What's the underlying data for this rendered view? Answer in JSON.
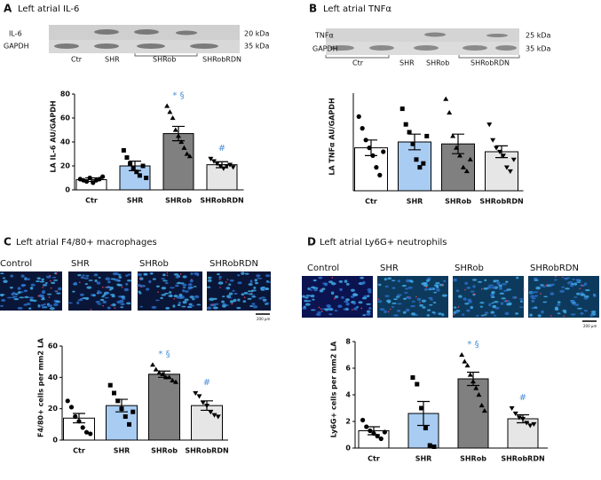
{
  "panels": [
    {
      "letter": "A",
      "title": "Left atrial IL-6",
      "blot": {
        "rows": [
          "IL-6",
          "GAPDH"
        ],
        "sizes": [
          "20 kDa",
          "35 kDa"
        ],
        "lanes": [
          "Ctr",
          "SHR",
          "SHRob",
          "SHRobRDN"
        ]
      }
    },
    {
      "letter": "B",
      "title": "Left atrial TNFα",
      "blot": {
        "rows": [
          "TNFα",
          "GAPDH"
        ],
        "sizes": [
          "25 kDa",
          "35 kDa"
        ],
        "lanes": [
          "Ctr",
          "SHR",
          "SHRob",
          "SHRobRDN"
        ]
      }
    },
    {
      "letter": "C",
      "title": "Left atrial F4/80+ macrophages",
      "images": [
        "Control",
        "SHR",
        "SHRob",
        "SHRobRDN"
      ],
      "scale": "200 μm"
    },
    {
      "letter": "D",
      "title": "Left atrial Ly6G+ neutrophils",
      "images": [
        "Control",
        "SHR",
        "SHRob",
        "SHRobRDN"
      ],
      "scale": "200 μm"
    }
  ],
  "chart_data": [
    {
      "type": "bar",
      "ylabel": "LA IL-6 AU/GAPDH",
      "categories": [
        "Ctr",
        "SHR",
        "SHRob",
        "SHRobRDN"
      ],
      "values": [
        8.5,
        20,
        47,
        21
      ],
      "errors": [
        1.5,
        4,
        6,
        2.5
      ],
      "points": [
        [
          9,
          8,
          7,
          10,
          6,
          8,
          9,
          11
        ],
        [
          33,
          27,
          22,
          18,
          15,
          12,
          20,
          10
        ],
        [
          70,
          65,
          60,
          50,
          45,
          40,
          35,
          30,
          28
        ],
        [
          26,
          24,
          22,
          20,
          18,
          20,
          21,
          19
        ]
      ],
      "colors": [
        "#ffffff",
        "#a9ccf2",
        "#808080",
        "#e6e6e6"
      ],
      "markers": [
        "circle",
        "square",
        "triangle",
        "triangle-down"
      ],
      "annotations": [
        null,
        null,
        "* §",
        "#"
      ],
      "annotation_color": "#4a90d9",
      "ylim": [
        0,
        80
      ],
      "yticks": [
        0,
        20,
        40,
        60,
        80
      ]
    },
    {
      "type": "bar",
      "ylabel": "LA TNFα AU/GAPDH",
      "categories": [
        "Ctr",
        "SHR",
        "SHRob",
        "SHRobRDN"
      ],
      "values": [
        1.1,
        1.25,
        1.2,
        1.0
      ],
      "errors": [
        0.2,
        0.2,
        0.25,
        0.15
      ],
      "points": [
        [
          1.9,
          1.6,
          1.3,
          1.1,
          0.9,
          0.6,
          0.4,
          1.0
        ],
        [
          2.1,
          1.7,
          1.5,
          1.2,
          0.8,
          0.6,
          0.7,
          1.4
        ],
        [
          2.35,
          2.0,
          1.4,
          1.1,
          0.9,
          0.6,
          0.5,
          0.8
        ],
        [
          1.7,
          1.3,
          1.1,
          1.0,
          0.9,
          0.6,
          0.5,
          0.8
        ]
      ],
      "colors": [
        "#ffffff",
        "#a9ccf2",
        "#808080",
        "#e6e6e6"
      ],
      "markers": [
        "circle",
        "square",
        "triangle",
        "triangle-down"
      ],
      "annotations": [
        null,
        null,
        null,
        null
      ],
      "annotation_color": "#4a90d9",
      "ylim": [
        0,
        2.5
      ]
    },
    {
      "type": "bar",
      "ylabel": "F4/80+ cells per mm2 LA",
      "categories": [
        "Ctr",
        "SHR",
        "SHRob",
        "SHRobRDN"
      ],
      "values": [
        14,
        22,
        42,
        22
      ],
      "errors": [
        3,
        4,
        2,
        3
      ],
      "points": [
        [
          25,
          21,
          15,
          12,
          8,
          5,
          4
        ],
        [
          35,
          30,
          25,
          20,
          15,
          10,
          18
        ],
        [
          48,
          45,
          43,
          42,
          40,
          40,
          38,
          37
        ],
        [
          30,
          28,
          24,
          22,
          18,
          16,
          15
        ]
      ],
      "colors": [
        "#ffffff",
        "#a9ccf2",
        "#808080",
        "#e6e6e6"
      ],
      "markers": [
        "circle",
        "square",
        "triangle",
        "triangle-down"
      ],
      "annotations": [
        null,
        null,
        "* §",
        "#"
      ],
      "annotation_color": "#4a90d9",
      "ylim": [
        0,
        60
      ],
      "yticks": [
        0,
        20,
        40,
        60
      ]
    },
    {
      "type": "bar",
      "ylabel": "Ly6G+ cells per mm2 LA",
      "categories": [
        "Ctr",
        "SHR",
        "SHRob",
        "SHRobRDN"
      ],
      "values": [
        1.3,
        2.6,
        5.2,
        2.2
      ],
      "errors": [
        0.3,
        0.9,
        0.5,
        0.3
      ],
      "points": [
        [
          2.1,
          1.6,
          1.3,
          1.1,
          0.9,
          0.7,
          1.2
        ],
        [
          5.3,
          4.8,
          3.0,
          1.5,
          0.2,
          0.1
        ],
        [
          7.0,
          6.5,
          6.2,
          5.5,
          5.0,
          4.5,
          4.0,
          3.2,
          2.8
        ],
        [
          3.0,
          2.6,
          2.3,
          2.2,
          1.9,
          1.7,
          1.8
        ]
      ],
      "colors": [
        "#ffffff",
        "#a9ccf2",
        "#808080",
        "#e6e6e6"
      ],
      "markers": [
        "circle",
        "square",
        "triangle",
        "triangle-down"
      ],
      "annotations": [
        null,
        null,
        "* §",
        "#"
      ],
      "annotation_color": "#4a90d9",
      "ylim": [
        0,
        8
      ],
      "yticks": [
        0,
        2,
        4,
        6,
        8
      ]
    }
  ]
}
